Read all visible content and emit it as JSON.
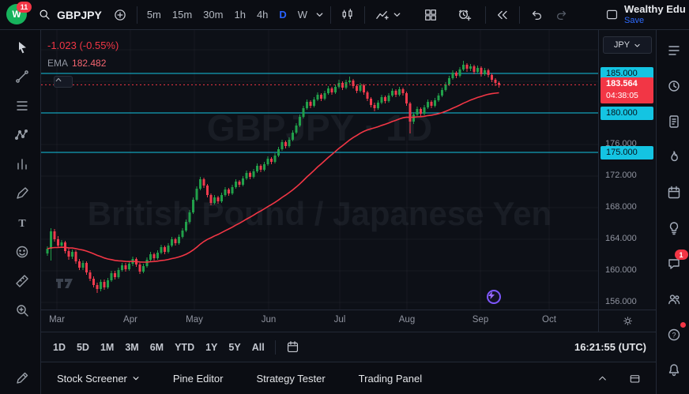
{
  "topbar": {
    "logo_badge": "11",
    "logo_letter": "W",
    "symbol": "GBPJPY",
    "timeframes": [
      "5m",
      "15m",
      "30m",
      "1h",
      "4h",
      "D",
      "W"
    ],
    "active_timeframe": "D",
    "account_name": "Wealthy Edu",
    "save_label": "Save"
  },
  "legend": {
    "change": "-1.023 (-0.55%)",
    "ema_label": "EMA",
    "ema_value": "182.482"
  },
  "watermark": {
    "line1": "GBPJPY · 1D",
    "line2": "British Pound / Japanese Yen"
  },
  "price_axis": {
    "currency": "JPY",
    "levels": [
      {
        "label": "185.000",
        "value": 185.0,
        "style": "cyan"
      },
      {
        "label": "183.564",
        "value": 183.564,
        "style": "current",
        "countdown": "04:38:05"
      },
      {
        "label": "180.000",
        "value": 180.0,
        "style": "cyan"
      },
      {
        "label": "176.000",
        "value": 176.0,
        "style": "plain"
      },
      {
        "label": "175.000",
        "value": 175.0,
        "style": "cyan"
      },
      {
        "label": "172.000",
        "value": 172.0,
        "style": "plain"
      },
      {
        "label": "168.000",
        "value": 168.0,
        "style": "plain"
      },
      {
        "label": "164.000",
        "value": 164.0,
        "style": "plain"
      },
      {
        "label": "160.000",
        "value": 160.0,
        "style": "plain"
      },
      {
        "label": "156.000",
        "value": 156.0,
        "style": "plain"
      }
    ]
  },
  "time_axis": {
    "labels": [
      "Mar",
      "Apr",
      "May",
      "Jun",
      "Jul",
      "Aug",
      "Sep",
      "Oct"
    ]
  },
  "range_toolbar": {
    "ranges": [
      "1D",
      "5D",
      "1M",
      "3M",
      "6M",
      "YTD",
      "1Y",
      "5Y",
      "All"
    ],
    "clock": "16:21:55 (UTC)"
  },
  "bottom_tabs": [
    "Stock Screener",
    "Pine Editor",
    "Strategy Tester",
    "Trading Panel"
  ],
  "right_sidebar": {
    "chat_badge": "1"
  },
  "icons": {
    "search-icon": "⌕",
    "plus-icon": "⊕",
    "caret-down-icon": "▾",
    "chart-type-candles-icon": "▐▌",
    "indicators-icon": "∿",
    "layout-grid-icon": "⊞",
    "alert-icon": "⏰",
    "replay-icon": "«",
    "undo-icon": "↶",
    "redo-icon": "↷",
    "gear-icon": "⚙",
    "calendar-icon": "▦",
    "chevron-up-icon": "⌃",
    "bolt-icon": "⚡"
  },
  "chart_data": {
    "type": "candlestick",
    "symbol": "GBPJPY",
    "interval": "1D",
    "title": "British Pound / Japanese Yen",
    "ylim": [
      155.1,
      190.5
    ],
    "y_ticks": [
      156,
      160,
      164,
      168,
      172,
      176,
      180,
      184,
      188
    ],
    "x_labels": [
      "Mar",
      "Apr",
      "May",
      "Jun",
      "Jul",
      "Aug",
      "Sep",
      "Oct"
    ],
    "horizontal_lines": [
      185.0,
      180.0,
      175.0
    ],
    "current_price": 183.564,
    "price_change": "-1.023 (-0.55%)",
    "ema_value": 182.482,
    "legend_position": "top-left",
    "grid": true,
    "colors": {
      "up": "#21a04a",
      "down": "#ef3b4e",
      "ema": "#f23645",
      "line": "#14c4e2",
      "current": "#f23645"
    },
    "candles": [
      [
        162.2,
        163.1,
        161.9,
        162.8
      ],
      [
        162.8,
        165.4,
        161.3,
        165.0
      ],
      [
        165.0,
        165.3,
        163.7,
        164.0
      ],
      [
        164.0,
        164.4,
        162.9,
        163.2
      ],
      [
        163.2,
        163.9,
        162.9,
        163.6
      ],
      [
        163.6,
        163.8,
        162.2,
        162.5
      ],
      [
        162.5,
        162.8,
        161.4,
        161.8
      ],
      [
        161.8,
        162.7,
        161.5,
        162.4
      ],
      [
        162.4,
        162.6,
        160.9,
        161.2
      ],
      [
        161.2,
        161.5,
        160.1,
        160.4
      ],
      [
        160.4,
        161.3,
        160.1,
        161.0
      ],
      [
        161.0,
        161.2,
        159.5,
        159.8
      ],
      [
        159.8,
        160.1,
        158.7,
        159.0
      ],
      [
        159.0,
        159.3,
        157.9,
        158.2
      ],
      [
        158.2,
        158.5,
        157.2,
        157.7
      ],
      [
        157.7,
        158.9,
        157.4,
        158.6
      ],
      [
        158.6,
        158.9,
        157.6,
        157.9
      ],
      [
        157.9,
        159.1,
        157.7,
        158.8
      ],
      [
        158.8,
        160.0,
        158.6,
        159.7
      ],
      [
        159.7,
        160.0,
        158.9,
        159.2
      ],
      [
        159.2,
        160.4,
        159.0,
        160.1
      ],
      [
        160.1,
        161.0,
        159.9,
        160.7
      ],
      [
        160.7,
        161.0,
        159.9,
        160.2
      ],
      [
        160.2,
        161.2,
        160.0,
        160.9
      ],
      [
        160.9,
        161.8,
        160.6,
        161.5
      ],
      [
        161.5,
        161.7,
        160.5,
        160.8
      ],
      [
        160.8,
        161.0,
        159.6,
        159.9
      ],
      [
        159.9,
        160.9,
        159.7,
        160.6
      ],
      [
        160.6,
        161.7,
        160.4,
        161.4
      ],
      [
        161.4,
        162.4,
        161.2,
        162.1
      ],
      [
        162.1,
        162.3,
        161.3,
        161.6
      ],
      [
        161.6,
        162.6,
        161.4,
        162.3
      ],
      [
        162.3,
        163.3,
        162.1,
        163.0
      ],
      [
        163.0,
        163.2,
        162.1,
        162.4
      ],
      [
        162.4,
        163.5,
        162.2,
        163.2
      ],
      [
        163.2,
        164.3,
        163.0,
        164.0
      ],
      [
        164.0,
        164.2,
        163.2,
        163.5
      ],
      [
        163.5,
        164.6,
        163.3,
        164.3
      ],
      [
        164.3,
        165.4,
        164.1,
        165.1
      ],
      [
        165.1,
        166.5,
        164.9,
        166.2
      ],
      [
        166.2,
        167.7,
        166.0,
        167.4
      ],
      [
        167.4,
        169.3,
        167.2,
        169.0
      ],
      [
        169.0,
        170.7,
        168.8,
        170.4
      ],
      [
        170.4,
        171.9,
        170.2,
        171.6
      ],
      [
        171.6,
        171.8,
        170.5,
        170.8
      ],
      [
        170.8,
        171.0,
        169.3,
        169.6
      ],
      [
        169.6,
        169.8,
        168.3,
        168.6
      ],
      [
        168.6,
        169.6,
        168.4,
        169.3
      ],
      [
        169.3,
        169.5,
        168.5,
        168.8
      ],
      [
        168.8,
        169.9,
        168.6,
        169.6
      ],
      [
        169.6,
        170.6,
        169.4,
        170.3
      ],
      [
        170.3,
        170.5,
        169.5,
        169.8
      ],
      [
        169.8,
        170.9,
        169.6,
        170.6
      ],
      [
        170.6,
        171.6,
        170.4,
        171.3
      ],
      [
        171.3,
        171.5,
        170.6,
        170.9
      ],
      [
        170.9,
        172.0,
        170.7,
        171.7
      ],
      [
        171.7,
        172.7,
        171.5,
        172.4
      ],
      [
        172.4,
        172.6,
        171.6,
        171.9
      ],
      [
        171.9,
        172.9,
        171.7,
        172.6
      ],
      [
        172.6,
        173.6,
        172.4,
        173.3
      ],
      [
        173.3,
        173.5,
        172.5,
        172.8
      ],
      [
        172.8,
        173.8,
        172.6,
        173.5
      ],
      [
        173.5,
        174.5,
        173.3,
        174.2
      ],
      [
        174.2,
        174.4,
        173.5,
        173.8
      ],
      [
        173.8,
        174.9,
        173.6,
        174.6
      ],
      [
        174.6,
        175.7,
        174.4,
        175.4
      ],
      [
        175.4,
        176.6,
        175.2,
        176.3
      ],
      [
        176.3,
        176.5,
        175.5,
        175.8
      ],
      [
        175.8,
        176.9,
        175.6,
        176.6
      ],
      [
        176.6,
        177.8,
        176.4,
        177.5
      ],
      [
        177.5,
        178.7,
        177.3,
        178.4
      ],
      [
        178.4,
        179.8,
        178.2,
        179.5
      ],
      [
        179.5,
        180.9,
        179.3,
        180.6
      ],
      [
        180.6,
        181.7,
        180.4,
        181.4
      ],
      [
        181.4,
        181.6,
        180.6,
        180.9
      ],
      [
        180.9,
        182.0,
        180.7,
        181.7
      ],
      [
        181.7,
        182.6,
        181.5,
        182.3
      ],
      [
        182.3,
        182.5,
        181.5,
        181.8
      ],
      [
        181.8,
        182.8,
        181.6,
        182.5
      ],
      [
        182.5,
        183.4,
        182.3,
        183.1
      ],
      [
        183.1,
        183.3,
        182.3,
        182.6
      ],
      [
        182.6,
        183.6,
        182.4,
        183.3
      ],
      [
        183.3,
        184.2,
        183.1,
        183.8
      ],
      [
        183.8,
        184.0,
        182.9,
        183.2
      ],
      [
        183.2,
        184.2,
        183.0,
        183.9
      ],
      [
        183.9,
        184.6,
        183.7,
        184.1
      ],
      [
        184.1,
        184.3,
        183.1,
        183.4
      ],
      [
        183.4,
        183.6,
        182.5,
        182.8
      ],
      [
        182.8,
        183.8,
        182.6,
        183.5
      ],
      [
        183.5,
        183.7,
        182.3,
        182.6
      ],
      [
        182.6,
        182.8,
        181.5,
        181.8
      ],
      [
        181.8,
        182.0,
        180.7,
        181.0
      ],
      [
        181.0,
        181.3,
        180.2,
        180.6
      ],
      [
        180.6,
        181.6,
        180.4,
        181.3
      ],
      [
        181.3,
        182.3,
        181.1,
        182.0
      ],
      [
        182.0,
        182.2,
        181.2,
        181.5
      ],
      [
        181.5,
        182.5,
        181.3,
        182.2
      ],
      [
        182.2,
        183.1,
        182.0,
        182.8
      ],
      [
        182.8,
        183.0,
        182.0,
        182.3
      ],
      [
        182.3,
        183.3,
        182.1,
        183.0
      ],
      [
        183.0,
        183.2,
        182.2,
        182.5
      ],
      [
        182.5,
        182.7,
        180.9,
        181.2
      ],
      [
        181.2,
        181.4,
        177.4,
        178.9
      ],
      [
        178.9,
        180.1,
        178.6,
        179.8
      ],
      [
        179.8,
        180.8,
        179.6,
        180.5
      ],
      [
        180.5,
        180.7,
        179.6,
        179.9
      ],
      [
        179.9,
        181.0,
        179.7,
        180.7
      ],
      [
        180.7,
        181.7,
        180.5,
        181.4
      ],
      [
        181.4,
        181.6,
        180.6,
        180.9
      ],
      [
        180.9,
        181.9,
        180.7,
        181.6
      ],
      [
        181.6,
        182.5,
        181.4,
        182.2
      ],
      [
        182.2,
        183.2,
        182.0,
        182.9
      ],
      [
        182.9,
        183.9,
        182.7,
        183.6
      ],
      [
        183.6,
        184.7,
        183.4,
        184.4
      ],
      [
        184.4,
        185.4,
        184.2,
        185.1
      ],
      [
        185.1,
        185.3,
        184.4,
        184.7
      ],
      [
        184.7,
        185.8,
        184.5,
        185.5
      ],
      [
        185.5,
        186.6,
        185.3,
        186.1
      ],
      [
        186.1,
        186.3,
        185.2,
        185.6
      ],
      [
        185.6,
        186.2,
        185.3,
        185.9
      ],
      [
        185.9,
        186.1,
        184.9,
        185.2
      ],
      [
        185.2,
        186.0,
        185.0,
        185.7
      ],
      [
        185.7,
        185.9,
        184.6,
        184.9
      ],
      [
        184.9,
        185.7,
        184.7,
        185.4
      ],
      [
        185.4,
        185.6,
        184.5,
        184.8
      ],
      [
        184.8,
        185.0,
        183.9,
        184.2
      ],
      [
        184.2,
        184.4,
        183.4,
        183.8
      ],
      [
        183.8,
        184.0,
        183.2,
        183.56
      ]
    ]
  }
}
